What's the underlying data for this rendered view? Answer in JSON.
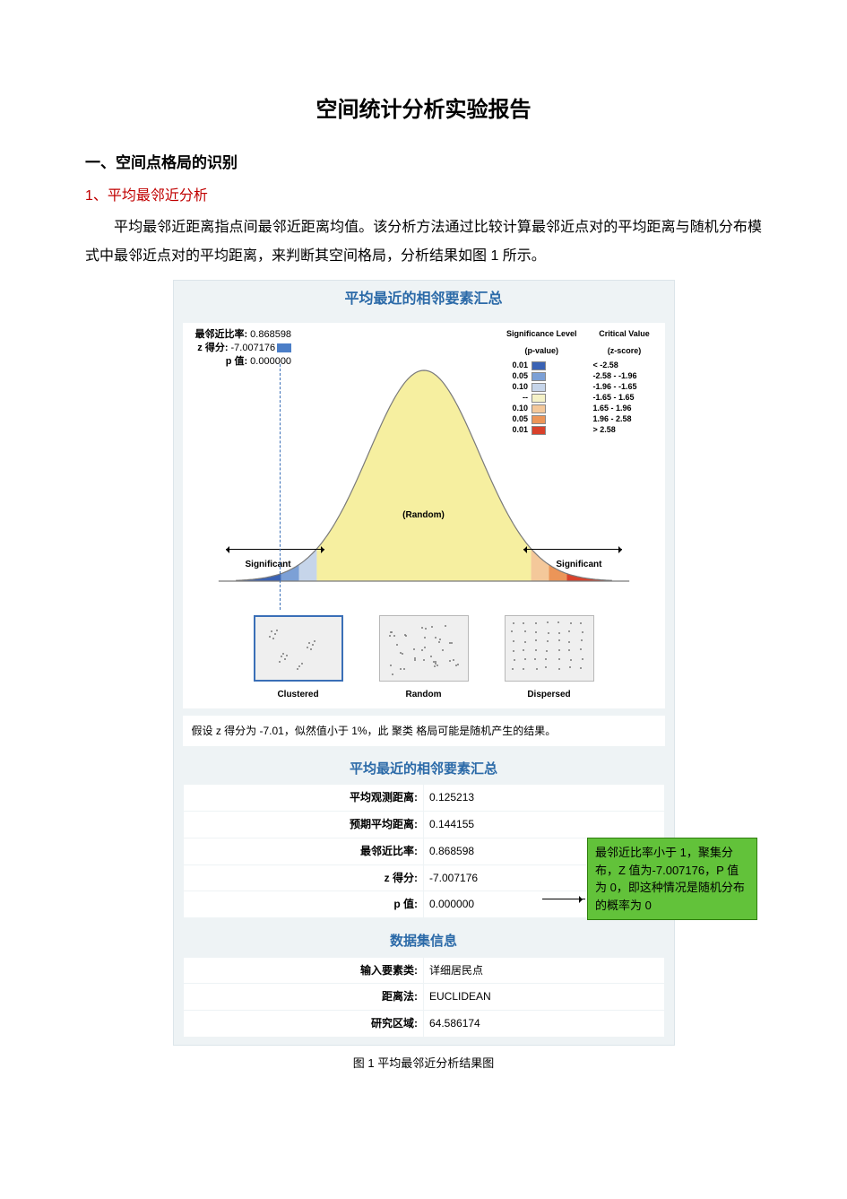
{
  "doc": {
    "title": "空间统计分析实验报告",
    "h1": "一、空间点格局的识别",
    "h2": "1、平均最邻近分析",
    "paragraph": "平均最邻近距离指点间最邻近距离均值。该分析方法通过比较计算最邻近点对的平均距离与随机分布模式中最邻近点对的平均距离，来判断其空间格局，分析结果如图 1 所示。",
    "caption": "图 1 平均最邻近分析结果图"
  },
  "figure": {
    "panel_title": "平均最近的相邻要素汇总",
    "stats": {
      "ratio_label": "最邻近比率:",
      "ratio_value": "0.868598",
      "z_label": "z 得分:",
      "z_value": "-7.007176",
      "p_label": "p 值:",
      "p_value": "0.000000"
    },
    "legend": {
      "p_header": "Significance Level",
      "p_sub": "(p-value)",
      "cv_header": "Critical Value",
      "cv_sub": "(z-score)",
      "rows": [
        {
          "p": "0.01",
          "color": "#3a62b4",
          "cv": "< -2.58"
        },
        {
          "p": "0.05",
          "color": "#7ca0d6",
          "cv": "-2.58 - -1.96"
        },
        {
          "p": "0.10",
          "color": "#c6d5ea",
          "cv": "-1.96 - -1.65"
        },
        {
          "p": "--",
          "color": "#f5f2c7",
          "cv": "-1.65 - 1.65"
        },
        {
          "p": "0.10",
          "color": "#f4c89a",
          "cv": "1.65 - 1.96"
        },
        {
          "p": "0.05",
          "color": "#ec9558",
          "cv": "1.96 - 2.58"
        },
        {
          "p": "0.01",
          "color": "#d9412b",
          "cv": "> 2.58"
        }
      ]
    },
    "bell": {
      "fill_center": "#f6efa0",
      "stroke": "#7a7a7a",
      "bands_left": [
        "#3a62b4",
        "#7ca0d6",
        "#c6d5ea"
      ],
      "bands_right": [
        "#f4c89a",
        "#ec9558",
        "#d9412b"
      ],
      "random_label": "(Random)",
      "sig_label": "Significant"
    },
    "patterns": {
      "clustered": "Clustered",
      "random": "Random",
      "dispersed": "Dispersed"
    },
    "hypothesis": "假设 z 得分为 -7.01，似然值小于 1%，此 聚类 格局可能是随机产生的结果。"
  },
  "summary_table": {
    "title": "平均最近的相邻要素汇总",
    "rows": [
      {
        "k": "平均观测距离:",
        "v": "0.125213"
      },
      {
        "k": "预期平均距离:",
        "v": "0.144155"
      },
      {
        "k": "最邻近比率:",
        "v": "0.868598"
      },
      {
        "k": "z 得分:",
        "v": "-7.007176"
      },
      {
        "k": "p 值:",
        "v": "0.000000"
      }
    ]
  },
  "dataset_table": {
    "title": "数据集信息",
    "rows": [
      {
        "k": "输入要素类:",
        "v": "详细居民点"
      },
      {
        "k": "距离法:",
        "v": "EUCLIDEAN"
      },
      {
        "k": "研究区域:",
        "v": "64.586174"
      }
    ]
  },
  "callout": {
    "text": "最邻近比率小于 1，聚集分布，Z 值为-7.007176，P 值为 0，即这种情况是随机分布的概率为 0"
  },
  "style": {
    "panel_bg": "#eef3f5",
    "panel_border": "#dce5ea",
    "title_color": "#2b6aa8",
    "callout_bg": "#62c23a",
    "callout_border": "#2f7d0e",
    "h2_color": "#c00000"
  }
}
